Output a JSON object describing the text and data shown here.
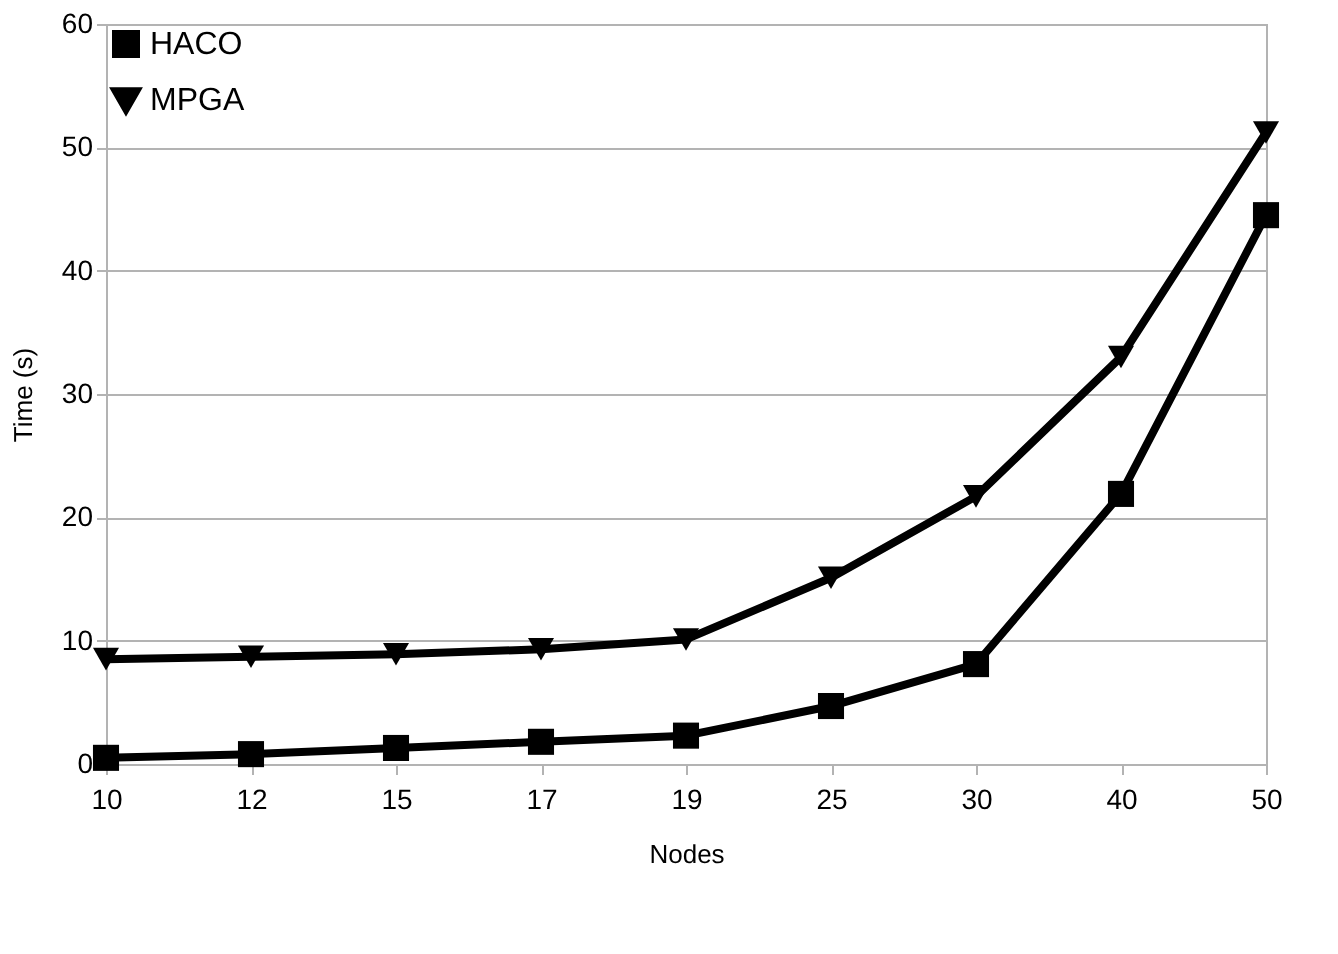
{
  "chart_data": {
    "type": "line",
    "xlabel": "Nodes",
    "ylabel": "Time (s)",
    "categories": [
      "10",
      "12",
      "15",
      "17",
      "19",
      "25",
      "30",
      "40",
      "50"
    ],
    "series": [
      {
        "name": "HACO",
        "color": "#000000",
        "marker": "square",
        "values": [
          0.5,
          0.8,
          1.3,
          1.8,
          2.3,
          4.7,
          8.1,
          21.9,
          44.5
        ]
      },
      {
        "name": "MPGA",
        "color": "#000000",
        "marker": "triangle",
        "values": [
          8.5,
          8.7,
          8.9,
          9.3,
          10.1,
          15.1,
          21.7,
          33.0,
          51.2
        ]
      }
    ],
    "ylim": [
      0,
      60
    ],
    "yticks": [
      0,
      10,
      20,
      30,
      40,
      50,
      60
    ],
    "grid": "y",
    "legend": "top left",
    "line_style": "solid"
  }
}
